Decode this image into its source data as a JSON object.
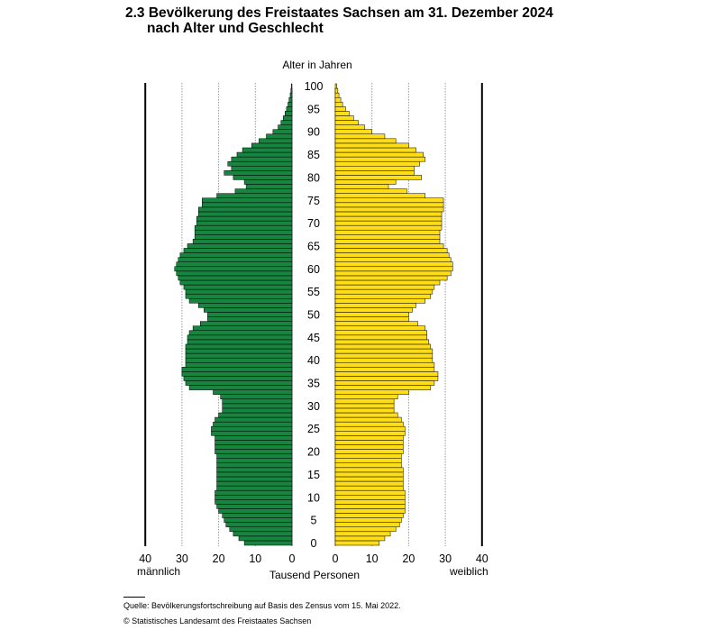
{
  "title_line1": "2.3 Bevölkerung des Freistaates Sachsen am 31. Dezember 2024",
  "title_line2": "nach Alter und Geschlecht",
  "source": "Quelle: Bevölkerungsfortschreibung auf Basis des Zensus vom 15. Mai 2022.",
  "copyright": "© Statistisches Landesamt des Freistaates Sachsen",
  "colors": {
    "male": "#17843f",
    "female": "#ffde17",
    "bar_edge": "#000000",
    "grid": "#999999"
  },
  "chart_data": {
    "type": "bar",
    "orientation": "horizontal",
    "layout": "population-pyramid",
    "y_label": "Alter in Jahren",
    "x_label": "Tausend Personen",
    "left_label": "männlich",
    "right_label": "weiblich",
    "xlim": [
      0,
      40
    ],
    "x_ticks_left": [
      "40",
      "30",
      "20",
      "10",
      "0"
    ],
    "x_ticks_right": [
      "0",
      "10",
      "20",
      "30",
      "40"
    ],
    "age_ticks": [
      "0",
      "5",
      "10",
      "15",
      "20",
      "25",
      "30",
      "35",
      "40",
      "45",
      "50",
      "55",
      "60",
      "65",
      "70",
      "75",
      "80",
      "85",
      "90",
      "95",
      "100"
    ],
    "grid": true,
    "ages": [
      0,
      1,
      2,
      3,
      4,
      5,
      6,
      7,
      8,
      9,
      10,
      11,
      12,
      13,
      14,
      15,
      16,
      17,
      18,
      19,
      20,
      21,
      22,
      23,
      24,
      25,
      26,
      27,
      28,
      29,
      30,
      31,
      32,
      33,
      34,
      35,
      36,
      37,
      38,
      39,
      40,
      41,
      42,
      43,
      44,
      45,
      46,
      47,
      48,
      49,
      50,
      51,
      52,
      53,
      54,
      55,
      56,
      57,
      58,
      59,
      60,
      61,
      62,
      63,
      64,
      65,
      66,
      67,
      68,
      69,
      70,
      71,
      72,
      73,
      74,
      75,
      76,
      77,
      78,
      79,
      80,
      81,
      82,
      83,
      84,
      85,
      86,
      87,
      88,
      89,
      90,
      91,
      92,
      93,
      94,
      95,
      96,
      97,
      98,
      99,
      100
    ],
    "series": [
      {
        "name": "männlich",
        "values": [
          13,
          14.5,
          16,
          17,
          18,
          18.5,
          19,
          20,
          20.5,
          21,
          21,
          21,
          20.5,
          20.5,
          20.5,
          20.5,
          20.5,
          20.5,
          20.5,
          20.5,
          21,
          21,
          21,
          21,
          22,
          22,
          21.5,
          21,
          20,
          19,
          19,
          19,
          19.5,
          21.5,
          28,
          29,
          29.5,
          30,
          30,
          29,
          29,
          29,
          29,
          29,
          28.5,
          28.5,
          28,
          27,
          25,
          23,
          23,
          24,
          25.5,
          28,
          29,
          29,
          29.5,
          30.5,
          31,
          31.5,
          32,
          31.5,
          31,
          30.5,
          29.5,
          28.5,
          27,
          26.5,
          26.5,
          26.5,
          26,
          26,
          25.5,
          25.5,
          24.5,
          24.5,
          20.5,
          15.5,
          12.5,
          13,
          16,
          18.5,
          16.5,
          17.5,
          16.5,
          15,
          13.5,
          11,
          9,
          7,
          5.2,
          3.8,
          3,
          2.4,
          1.9,
          1.5,
          1.1,
          0.8,
          0.5,
          0.3,
          0.2
        ]
      },
      {
        "name": "weiblich",
        "values": [
          12,
          13.5,
          15,
          16.5,
          17.5,
          18,
          18.5,
          19,
          19,
          19,
          19,
          19,
          18.5,
          18.5,
          18.5,
          18.5,
          18.5,
          18,
          18,
          18,
          18.5,
          18.5,
          18.5,
          18.5,
          19,
          19,
          18.5,
          18,
          17,
          16,
          16,
          16,
          17,
          20,
          26,
          27,
          28,
          28,
          27,
          27,
          26.5,
          26.5,
          26.5,
          26,
          25.5,
          25,
          25,
          24.5,
          22.5,
          20,
          20,
          21,
          22,
          24.5,
          26,
          26.5,
          27,
          28.5,
          30.5,
          31.5,
          32,
          32,
          31.5,
          31,
          30.5,
          29.5,
          28.5,
          28.5,
          28.5,
          29,
          29,
          29,
          29,
          29.5,
          29.5,
          29.5,
          24.5,
          19.5,
          14.5,
          16.5,
          23.5,
          21.5,
          21.5,
          23,
          24.5,
          24,
          22,
          20,
          16.5,
          13.5,
          10,
          8,
          6.3,
          5,
          3.8,
          2.8,
          2,
          1.5,
          1,
          0.7,
          0.4
        ]
      }
    ]
  }
}
